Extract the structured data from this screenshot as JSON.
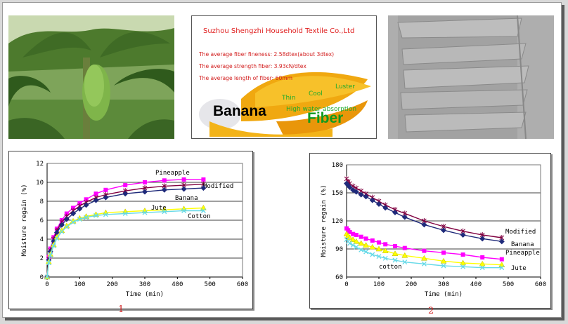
{
  "panels": {
    "photo1": "banana-plant-photo",
    "photo2": {
      "company": "Suzhou Shengzhi Household Textile Co.,Ltd",
      "specs": [
        "The average fiber fineness: 2.58dtex(about 3dtex)",
        "The average strength fiber: 3.93cN/dtex",
        "The average length of fiber: 60mm"
      ],
      "features": [
        "Thin",
        "Cool",
        "Luster",
        "High water absorption"
      ],
      "word1": "Banana",
      "word2": "Fiber"
    },
    "photo3": "fiber-micrograph"
  },
  "captions": [
    "1",
    "2"
  ],
  "chart_data": [
    {
      "type": "line",
      "xlabel": "Time (min)",
      "ylabel": "Moisture regain (%)",
      "xlim": [
        0,
        600
      ],
      "ylim": [
        0,
        12
      ],
      "xticks": [
        0,
        100,
        200,
        300,
        400,
        500,
        600
      ],
      "yticks": [
        0,
        2,
        4,
        6,
        8,
        10,
        12
      ],
      "grid": "horizontal",
      "series": [
        {
          "name": "Pineapple",
          "color": "#ff00ff",
          "marker": "square",
          "x": [
            0,
            5,
            10,
            20,
            30,
            45,
            60,
            80,
            100,
            120,
            150,
            180,
            240,
            300,
            360,
            420,
            480
          ],
          "y": [
            0,
            2.1,
            3.0,
            4.2,
            5.1,
            6.0,
            6.7,
            7.3,
            7.8,
            8.2,
            8.8,
            9.2,
            9.7,
            10.0,
            10.2,
            10.3,
            10.3
          ]
        },
        {
          "name": "Modified",
          "color": "#800040",
          "marker": "asterisk",
          "x": [
            0,
            5,
            10,
            20,
            30,
            45,
            60,
            80,
            100,
            120,
            150,
            180,
            240,
            300,
            360,
            420,
            480
          ],
          "y": [
            0,
            1.9,
            2.8,
            4.0,
            4.9,
            5.8,
            6.4,
            7.0,
            7.5,
            7.9,
            8.4,
            8.7,
            9.1,
            9.4,
            9.6,
            9.7,
            9.8
          ]
        },
        {
          "name": "Banana",
          "color": "#1f2a7a",
          "marker": "diamond",
          "x": [
            0,
            5,
            10,
            20,
            30,
            45,
            60,
            80,
            100,
            120,
            150,
            180,
            240,
            300,
            360,
            420,
            480
          ],
          "y": [
            0,
            1.8,
            2.7,
            3.8,
            4.7,
            5.5,
            6.1,
            6.7,
            7.2,
            7.6,
            8.1,
            8.4,
            8.8,
            9.0,
            9.2,
            9.3,
            9.4
          ]
        },
        {
          "name": "Jute",
          "color": "#ffff00",
          "marker": "triangle",
          "x": [
            0,
            5,
            10,
            20,
            30,
            45,
            60,
            80,
            100,
            120,
            150,
            180,
            240,
            300,
            360,
            420,
            480
          ],
          "y": [
            0,
            1.6,
            2.4,
            3.4,
            4.2,
            4.9,
            5.4,
            5.9,
            6.2,
            6.4,
            6.6,
            6.8,
            6.9,
            7.0,
            7.1,
            7.2,
            7.3
          ]
        },
        {
          "name": "Cotton",
          "color": "#66d9e8",
          "marker": "x",
          "x": [
            0,
            5,
            10,
            20,
            30,
            45,
            60,
            80,
            100,
            120,
            150,
            180,
            240,
            300,
            360,
            420,
            480
          ],
          "y": [
            0,
            1.5,
            2.3,
            3.3,
            4.1,
            4.8,
            5.3,
            5.8,
            6.1,
            6.3,
            6.5,
            6.6,
            6.7,
            6.8,
            6.9,
            7.0,
            7.0
          ]
        }
      ]
    },
    {
      "type": "line",
      "xlabel": "Time (min)",
      "ylabel": "Moisture regain (%)",
      "xlim": [
        0,
        600
      ],
      "ylim": [
        60,
        180
      ],
      "xticks": [
        0,
        100,
        200,
        300,
        400,
        500,
        600
      ],
      "yticks": [
        60,
        90,
        120,
        150,
        180
      ],
      "grid": "horizontal",
      "series": [
        {
          "name": "Modified",
          "color": "#800040",
          "marker": "asterisk",
          "x": [
            0,
            5,
            10,
            20,
            30,
            45,
            60,
            80,
            100,
            120,
            150,
            180,
            240,
            300,
            360,
            420,
            480
          ],
          "y": [
            165,
            162,
            160,
            157,
            155,
            152,
            149,
            145,
            141,
            137,
            132,
            128,
            120,
            114,
            109,
            105,
            102
          ]
        },
        {
          "name": "Banana",
          "color": "#1f2a7a",
          "marker": "diamond",
          "x": [
            0,
            5,
            10,
            20,
            30,
            45,
            60,
            80,
            100,
            120,
            150,
            180,
            240,
            300,
            360,
            420,
            480
          ],
          "y": [
            160,
            158,
            156,
            153,
            151,
            148,
            146,
            142,
            138,
            134,
            129,
            124,
            116,
            110,
            105,
            101,
            98
          ]
        },
        {
          "name": "Pineapple",
          "color": "#ff00ff",
          "marker": "square",
          "x": [
            0,
            5,
            10,
            20,
            30,
            45,
            60,
            80,
            100,
            120,
            150,
            180,
            240,
            300,
            360,
            420,
            480
          ],
          "y": [
            112,
            110,
            108,
            106,
            105,
            103,
            101,
            99,
            97,
            95,
            93,
            91,
            88,
            86,
            84,
            81,
            79
          ]
        },
        {
          "name": "Jute",
          "color": "#ffff00",
          "marker": "triangle",
          "x": [
            0,
            5,
            10,
            20,
            30,
            45,
            60,
            80,
            100,
            120,
            150,
            180,
            240,
            300,
            360,
            420,
            480
          ],
          "y": [
            106,
            104,
            102,
            100,
            98,
            96,
            94,
            92,
            90,
            88,
            85,
            83,
            80,
            77,
            75,
            74,
            73
          ]
        },
        {
          "name": "cotton",
          "color": "#66d9e8",
          "marker": "x",
          "x": [
            0,
            5,
            10,
            20,
            30,
            45,
            60,
            80,
            100,
            120,
            150,
            180,
            240,
            300,
            360,
            420,
            480
          ],
          "y": [
            100,
            98,
            96,
            94,
            92,
            89,
            87,
            84,
            82,
            80,
            78,
            76,
            74,
            72,
            71,
            70,
            70
          ]
        }
      ]
    }
  ]
}
